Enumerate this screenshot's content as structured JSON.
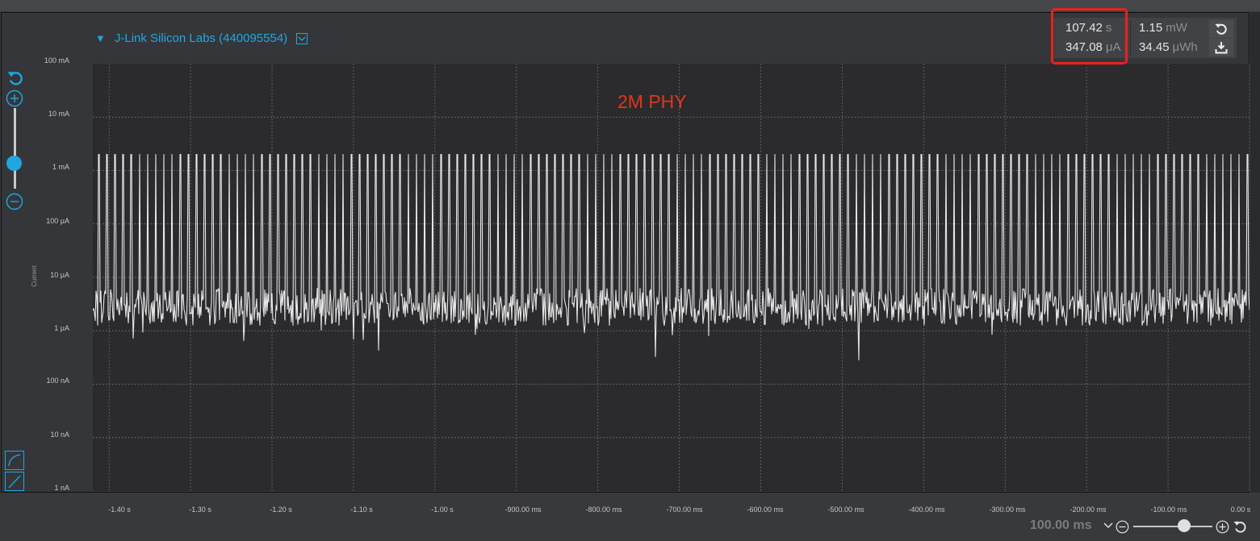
{
  "device": {
    "name": "J-Link Silicon Labs (440095554)"
  },
  "annotation": {
    "text": "2M PHY"
  },
  "stats": {
    "time_value": "107.42",
    "time_unit": "s",
    "current_value": "347.08",
    "current_unit": "μA",
    "power_value": "1.15",
    "power_unit": "mW",
    "energy_value": "34.45",
    "energy_unit": "μWh"
  },
  "y_axis": {
    "title": "Current",
    "ticks": [
      "100 mA",
      "10 mA",
      "1 mA",
      "100 μA",
      "10 μA",
      "1 μA",
      "100 nA",
      "10 nA",
      "1 nA"
    ]
  },
  "x_axis": {
    "ticks": [
      "-1.40 s",
      "-1.30 s",
      "-1.20 s",
      "-1.10 s",
      "-1.00 s",
      "-900.00 ms",
      "-800.00 ms",
      "-700.00 ms",
      "-600.00 ms",
      "-500.00 ms",
      "-400.00 ms",
      "-300.00 ms",
      "-200.00 ms",
      "-100.00 ms",
      "0.00 s"
    ]
  },
  "zoom": {
    "label": "100.00 ms",
    "level": 0.57
  },
  "colors": {
    "accent": "#1ea7e1",
    "trace": "#e6e6e6",
    "annotation": "#e8321e",
    "highlight": "#e8221e"
  },
  "chart_data": {
    "type": "line",
    "series": [
      {
        "x_range": [
          -1.42,
          0.0
        ],
        "baseline": "1 μA – 10 μA",
        "pulse_peak": "2 mA",
        "tall_peak": "5 mA",
        "pulse_period_s": 0.01,
        "tall_peak_period_s": 0.21
      }
    ],
    "xlim": [
      -1.42,
      0.0
    ],
    "ylim": [
      "1 nA",
      "100 mA"
    ],
    "yscale": "log",
    "grid": true
  }
}
